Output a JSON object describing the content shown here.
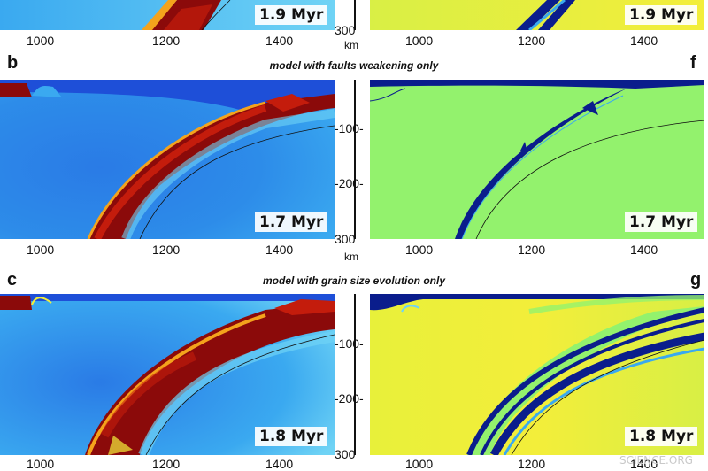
{
  "colors": {
    "viscosity_low": "#1e4fd8",
    "viscosity_mid": "#3aa9f0",
    "viscosity_high": "#8b0a0a",
    "strain_background": "#93f26d",
    "strain_yellow": "#f3ee3a",
    "strain_band": "#0a1d8c"
  },
  "rows": [
    {
      "id": "a",
      "caption": "",
      "left_letter": "",
      "right_letter": "",
      "time_left": "1.9 Myr",
      "time_right": "1.9 Myr",
      "x_ticks_left": [
        "1000",
        "1200",
        "1400"
      ],
      "x_ticks_right": [
        "1000",
        "1200",
        "1400"
      ],
      "y_ticks": [
        "300"
      ],
      "unit": "km"
    },
    {
      "id": "b",
      "caption": "model with faults weakening only",
      "left_letter": "b",
      "right_letter": "f",
      "time_left": "1.7 Myr",
      "time_right": "1.7 Myr",
      "x_ticks_left": [
        "1000",
        "1200",
        "1400"
      ],
      "x_ticks_right": [
        "1000",
        "1200",
        "1400"
      ],
      "y_ticks": [
        "-100-",
        "-200-",
        "300"
      ],
      "unit": "km"
    },
    {
      "id": "c",
      "caption": "model with grain size evolution only",
      "left_letter": "c",
      "right_letter": "g",
      "time_left": "1.8 Myr",
      "time_right": "1.8 Myr",
      "x_ticks_left": [
        "1000",
        "1200",
        "1400"
      ],
      "x_ticks_right": [
        "1000",
        "1200",
        "1400"
      ],
      "y_ticks": [
        "-100-",
        "-200-",
        "300"
      ],
      "unit": ""
    }
  ],
  "watermark": "SCIENCE.ORG"
}
